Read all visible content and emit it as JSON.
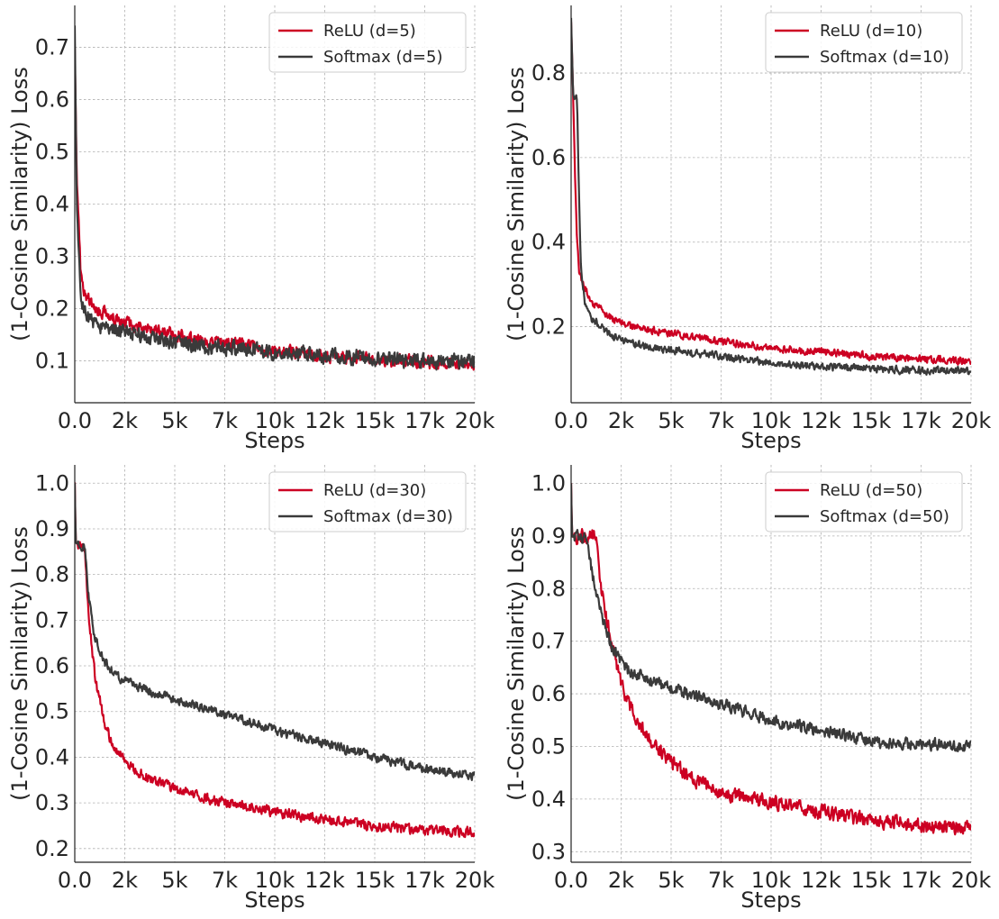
{
  "colors": {
    "relu": "#cc0022",
    "softmax": "#3a3a3a"
  },
  "chart_data": [
    {
      "type": "line",
      "xlabel": "Steps",
      "ylabel": "(1-Cosine Similarity) Loss",
      "xlim": [
        0,
        20000
      ],
      "ylim": [
        0.02,
        0.78
      ],
      "xticks": [
        0,
        2500,
        5000,
        7500,
        10000,
        12500,
        15000,
        17500,
        20000
      ],
      "xtick_labels": [
        "0.0",
        "2k",
        "5k",
        "7k",
        "10k",
        "12k",
        "15k",
        "17k",
        "20k"
      ],
      "yticks": [
        0.1,
        0.2,
        0.3,
        0.4,
        0.5,
        0.6,
        0.7
      ],
      "ytick_labels": [
        "0.1",
        "0.2",
        "0.3",
        "0.4",
        "0.5",
        "0.6",
        "0.7"
      ],
      "grid": true,
      "legend": "top-right",
      "series": [
        {
          "name": "ReLU (d=5)",
          "color": "#cc0022",
          "noise": 0.011,
          "x": [
            0,
            100,
            300,
            500,
            1000,
            2000,
            3000,
            5000,
            7500,
            10000,
            12500,
            15000,
            17500,
            20000
          ],
          "y": [
            0.7,
            0.45,
            0.27,
            0.23,
            0.2,
            0.18,
            0.17,
            0.15,
            0.135,
            0.12,
            0.11,
            0.102,
            0.097,
            0.095
          ]
        },
        {
          "name": "Softmax (d=5)",
          "color": "#3a3a3a",
          "noise": 0.013,
          "x": [
            0,
            100,
            300,
            500,
            1000,
            2000,
            3000,
            5000,
            7500,
            10000,
            12500,
            15000,
            17500,
            20000
          ],
          "y": [
            0.74,
            0.4,
            0.22,
            0.19,
            0.17,
            0.16,
            0.15,
            0.135,
            0.125,
            0.115,
            0.11,
            0.105,
            0.1,
            0.098
          ]
        }
      ]
    },
    {
      "type": "line",
      "xlabel": "Steps",
      "ylabel": "(1-Cosine Similarity) Loss",
      "xlim": [
        0,
        20000
      ],
      "ylim": [
        0.02,
        0.96
      ],
      "xticks": [
        0,
        2500,
        5000,
        7500,
        10000,
        12500,
        15000,
        17500,
        20000
      ],
      "xtick_labels": [
        "0.0",
        "2k",
        "5k",
        "7k",
        "10k",
        "12k",
        "15k",
        "17k",
        "20k"
      ],
      "yticks": [
        0.2,
        0.4,
        0.6,
        0.8
      ],
      "ytick_labels": [
        "0.2",
        "0.4",
        "0.6",
        "0.8"
      ],
      "grid": true,
      "legend": "top-right",
      "series": [
        {
          "name": "ReLU (d=10)",
          "color": "#cc0022",
          "noise": 0.008,
          "x": [
            0,
            100,
            200,
            300,
            400,
            600,
            1000,
            2000,
            3000,
            5000,
            7500,
            10000,
            12500,
            15000,
            17500,
            20000
          ],
          "y": [
            0.92,
            0.75,
            0.55,
            0.4,
            0.33,
            0.3,
            0.26,
            0.22,
            0.2,
            0.185,
            0.165,
            0.15,
            0.14,
            0.13,
            0.123,
            0.118
          ]
        },
        {
          "name": "Softmax (d=10)",
          "color": "#3a3a3a",
          "noise": 0.008,
          "x": [
            0,
            100,
            150,
            300,
            400,
            500,
            700,
            1000,
            2000,
            3000,
            5000,
            7500,
            10000,
            12500,
            15000,
            17500,
            20000
          ],
          "y": [
            0.93,
            0.75,
            0.74,
            0.74,
            0.5,
            0.33,
            0.25,
            0.22,
            0.18,
            0.16,
            0.145,
            0.13,
            0.115,
            0.105,
            0.1,
            0.097,
            0.095
          ]
        }
      ]
    },
    {
      "type": "line",
      "xlabel": "Steps",
      "ylabel": "(1-Cosine Similarity) Loss",
      "xlim": [
        0,
        20000
      ],
      "ylim": [
        0.17,
        1.04
      ],
      "xticks": [
        0,
        2500,
        5000,
        7500,
        10000,
        12500,
        15000,
        17500,
        20000
      ],
      "xtick_labels": [
        "0.0",
        "2k",
        "5k",
        "7k",
        "10k",
        "12k",
        "15k",
        "17k",
        "20k"
      ],
      "yticks": [
        0.2,
        0.3,
        0.4,
        0.5,
        0.6,
        0.7,
        0.8,
        0.9,
        1.0
      ],
      "ytick_labels": [
        "0.2",
        "0.3",
        "0.4",
        "0.5",
        "0.6",
        "0.7",
        "0.8",
        "0.9",
        "1.0"
      ],
      "grid": true,
      "legend": "top-right",
      "series": [
        {
          "name": "ReLU (d=30)",
          "color": "#cc0022",
          "noise": 0.01,
          "x": [
            0,
            50,
            200,
            500,
            700,
            1000,
            1500,
            2000,
            3000,
            5000,
            7500,
            10000,
            12500,
            15000,
            17500,
            20000
          ],
          "y": [
            1.0,
            0.87,
            0.865,
            0.86,
            0.7,
            0.58,
            0.47,
            0.42,
            0.37,
            0.33,
            0.3,
            0.28,
            0.262,
            0.25,
            0.24,
            0.235
          ]
        },
        {
          "name": "Softmax (d=30)",
          "color": "#3a3a3a",
          "noise": 0.009,
          "x": [
            0,
            50,
            200,
            500,
            700,
            1000,
            1500,
            2000,
            3000,
            5000,
            7500,
            10000,
            12500,
            15000,
            17500,
            20000
          ],
          "y": [
            1.0,
            0.87,
            0.865,
            0.86,
            0.75,
            0.66,
            0.61,
            0.58,
            0.555,
            0.525,
            0.495,
            0.46,
            0.43,
            0.4,
            0.375,
            0.36
          ]
        }
      ]
    },
    {
      "type": "line",
      "xlabel": "Steps",
      "ylabel": "(1-Cosine Similarity) Loss",
      "xlim": [
        0,
        20000
      ],
      "ylim": [
        0.28,
        1.035
      ],
      "xticks": [
        0,
        2500,
        5000,
        7500,
        10000,
        12500,
        15000,
        17500,
        20000
      ],
      "xtick_labels": [
        "0.0",
        "2k",
        "5k",
        "7k",
        "10k",
        "12k",
        "15k",
        "17k",
        "20k"
      ],
      "yticks": [
        0.3,
        0.4,
        0.5,
        0.6,
        0.7,
        0.8,
        0.9,
        1.0
      ],
      "ytick_labels": [
        "0.3",
        "0.4",
        "0.5",
        "0.6",
        "0.7",
        "0.8",
        "0.9",
        "1.0"
      ],
      "grid": true,
      "legend": "top-right",
      "series": [
        {
          "name": "ReLU (d=50)",
          "color": "#cc0022",
          "noise": 0.012,
          "x": [
            0,
            50,
            200,
            1000,
            1300,
            1500,
            2000,
            2500,
            3000,
            4000,
            5000,
            6000,
            7500,
            10000,
            12500,
            15000,
            17500,
            20000
          ],
          "y": [
            1.0,
            0.9,
            0.9,
            0.9,
            0.89,
            0.8,
            0.7,
            0.62,
            0.57,
            0.51,
            0.47,
            0.44,
            0.41,
            0.395,
            0.375,
            0.36,
            0.35,
            0.345
          ]
        },
        {
          "name": "Softmax (d=50)",
          "color": "#3a3a3a",
          "noise": 0.01,
          "x": [
            0,
            50,
            200,
            800,
            1000,
            1500,
            2000,
            2500,
            3000,
            5000,
            7500,
            10000,
            12500,
            15000,
            17500,
            20000
          ],
          "y": [
            1.0,
            0.9,
            0.9,
            0.895,
            0.84,
            0.75,
            0.69,
            0.66,
            0.64,
            0.61,
            0.58,
            0.55,
            0.53,
            0.51,
            0.505,
            0.5
          ]
        }
      ]
    }
  ]
}
